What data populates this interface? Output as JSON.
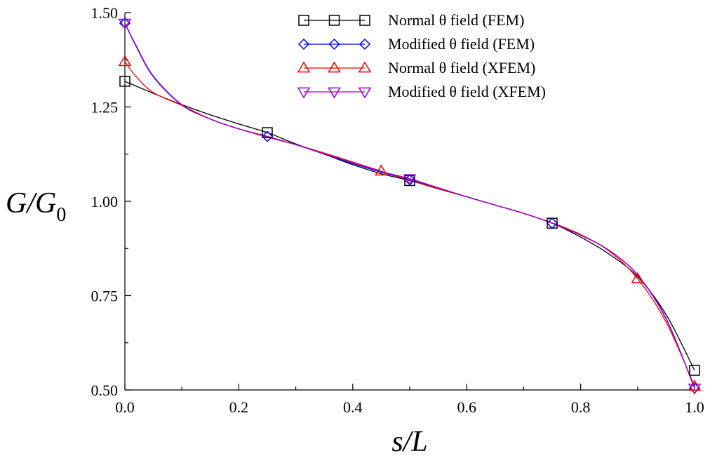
{
  "chart_data": {
    "type": "line",
    "xlabel": "s/L",
    "ylabel_main": "G/G",
    "ylabel_sub": "0",
    "xlim": [
      0.0,
      1.0
    ],
    "ylim": [
      0.5,
      1.5
    ],
    "x_ticks": [
      "0.0",
      "0.2",
      "0.4",
      "0.6",
      "0.8",
      "1.0"
    ],
    "y_ticks": [
      "0.50",
      "0.75",
      "1.00",
      "1.25",
      "1.50"
    ],
    "grid": false,
    "legend_position": "top-right",
    "series": [
      {
        "name": "Normal θ field (FEM)",
        "color": "#000000",
        "marker": "square",
        "x": [
          0.0,
          0.25,
          0.5,
          0.75,
          1.0
        ],
        "y": [
          1.318,
          1.182,
          1.055,
          0.942,
          0.552
        ],
        "curve_x": [
          0.0,
          0.05,
          0.1,
          0.15,
          0.2,
          0.25,
          0.3,
          0.35,
          0.4,
          0.45,
          0.5,
          0.55,
          0.6,
          0.65,
          0.7,
          0.75,
          0.8,
          0.85,
          0.9,
          0.95,
          1.0
        ],
        "curve_y": [
          1.318,
          1.286,
          1.256,
          1.229,
          1.205,
          1.182,
          1.152,
          1.125,
          1.097,
          1.073,
          1.055,
          1.033,
          1.012,
          0.99,
          0.968,
          0.942,
          0.905,
          0.86,
          0.8,
          0.7,
          0.552
        ]
      },
      {
        "name": "Modified θ field (FEM)",
        "color": "#0000ff",
        "marker": "diamond",
        "x": [
          0.0,
          0.25,
          0.5,
          0.75,
          1.0
        ],
        "y": [
          1.472,
          1.172,
          1.057,
          0.942,
          0.505
        ],
        "curve_x": [
          0.0,
          0.02,
          0.05,
          0.1,
          0.15,
          0.2,
          0.25,
          0.3,
          0.35,
          0.4,
          0.45,
          0.5,
          0.55,
          0.6,
          0.65,
          0.7,
          0.75,
          0.8,
          0.85,
          0.9,
          0.95,
          1.0
        ],
        "curve_y": [
          1.472,
          1.41,
          1.33,
          1.255,
          1.218,
          1.192,
          1.172,
          1.15,
          1.125,
          1.1,
          1.077,
          1.057,
          1.035,
          1.012,
          0.99,
          0.968,
          0.942,
          0.91,
          0.87,
          0.805,
          0.69,
          0.505
        ]
      },
      {
        "name": "Normal θ field (XFEM)",
        "color": "#ff0000",
        "marker": "triangle-up",
        "x": [
          0.0,
          0.45,
          0.9,
          1.0
        ],
        "y": [
          1.37,
          1.08,
          0.795,
          0.51
        ],
        "curve_x": [
          0.0,
          0.02,
          0.05,
          0.1,
          0.15,
          0.2,
          0.25,
          0.3,
          0.35,
          0.4,
          0.45,
          0.5,
          0.55,
          0.6,
          0.65,
          0.7,
          0.75,
          0.8,
          0.85,
          0.9,
          0.95,
          1.0
        ],
        "curve_y": [
          1.37,
          1.33,
          1.288,
          1.254,
          1.218,
          1.192,
          1.17,
          1.15,
          1.128,
          1.104,
          1.08,
          1.056,
          1.034,
          1.012,
          0.99,
          0.968,
          0.943,
          0.912,
          0.868,
          0.795,
          0.68,
          0.51
        ]
      },
      {
        "name": "Modified θ field (XFEM)",
        "color": "#9900cc",
        "marker": "triangle-down",
        "x": [
          0.0,
          0.5,
          1.0
        ],
        "y": [
          1.472,
          1.06,
          0.505
        ],
        "curve_x": [
          0.0,
          0.02,
          0.05,
          0.1,
          0.15,
          0.2,
          0.25,
          0.3,
          0.35,
          0.4,
          0.45,
          0.5,
          0.55,
          0.6,
          0.65,
          0.7,
          0.75,
          0.8,
          0.85,
          0.9,
          0.95,
          1.0
        ],
        "curve_y": [
          1.472,
          1.412,
          1.332,
          1.256,
          1.218,
          1.192,
          1.172,
          1.15,
          1.126,
          1.102,
          1.079,
          1.06,
          1.036,
          1.012,
          0.99,
          0.968,
          0.942,
          0.91,
          0.87,
          0.804,
          0.688,
          0.505
        ]
      }
    ]
  }
}
